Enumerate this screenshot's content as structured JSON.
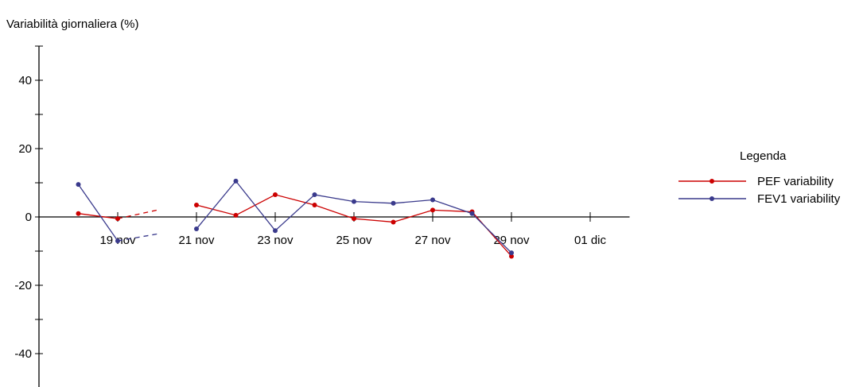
{
  "chart_data": {
    "type": "line",
    "title": "Variabilità giornaliera (%)",
    "ylim": [
      -50,
      50
    ],
    "y_ticks": [
      -40,
      -20,
      0,
      20,
      40
    ],
    "y_minor_step": 10,
    "x_range": [
      "2008-11-17",
      "2008-12-02"
    ],
    "x_ticks": [
      {
        "date": "2008-11-19",
        "label": "19 nov"
      },
      {
        "date": "2008-11-21",
        "label": "21 nov"
      },
      {
        "date": "2008-11-23",
        "label": "23 nov"
      },
      {
        "date": "2008-11-25",
        "label": "25 nov"
      },
      {
        "date": "2008-11-27",
        "label": "27 nov"
      },
      {
        "date": "2008-11-29",
        "label": "29 nov"
      },
      {
        "date": "2008-12-01",
        "label": "01 dic"
      }
    ],
    "legend": {
      "title": "Legenda",
      "position": "right"
    },
    "series": [
      {
        "name": "PEF variability",
        "color": "#cc0000",
        "points": [
          {
            "x": "2008-11-18",
            "y": 1
          },
          {
            "x": "2008-11-19",
            "y": -0.5
          },
          {
            "x": "2008-11-21",
            "y": 3.5
          },
          {
            "x": "2008-11-22",
            "y": 0.5
          },
          {
            "x": "2008-11-23",
            "y": 6.5
          },
          {
            "x": "2008-11-24",
            "y": 3.5
          },
          {
            "x": "2008-11-25",
            "y": -0.5
          },
          {
            "x": "2008-11-26",
            "y": -1.5
          },
          {
            "x": "2008-11-27",
            "y": 2
          },
          {
            "x": "2008-11-28",
            "y": 1.5
          },
          {
            "x": "2008-11-29",
            "y": -11.5
          }
        ],
        "dashed_gap": {
          "from": {
            "x": "2008-11-19",
            "y": -0.5
          },
          "to": {
            "x": "2008-11-20",
            "y": 2
          }
        }
      },
      {
        "name": "FEV1 variability",
        "color": "#3a3a8c",
        "points": [
          {
            "x": "2008-11-18",
            "y": 9.5
          },
          {
            "x": "2008-11-19",
            "y": -7
          },
          {
            "x": "2008-11-21",
            "y": -3.5
          },
          {
            "x": "2008-11-22",
            "y": 10.5
          },
          {
            "x": "2008-11-23",
            "y": -4
          },
          {
            "x": "2008-11-24",
            "y": 6.5
          },
          {
            "x": "2008-11-25",
            "y": 4.5
          },
          {
            "x": "2008-11-26",
            "y": 4
          },
          {
            "x": "2008-11-27",
            "y": 5
          },
          {
            "x": "2008-11-28",
            "y": 1
          },
          {
            "x": "2008-11-29",
            "y": -10.5
          }
        ],
        "dashed_gap": {
          "from": {
            "x": "2008-11-19",
            "y": -7
          },
          "to": {
            "x": "2008-11-20",
            "y": -5
          }
        }
      }
    ]
  }
}
